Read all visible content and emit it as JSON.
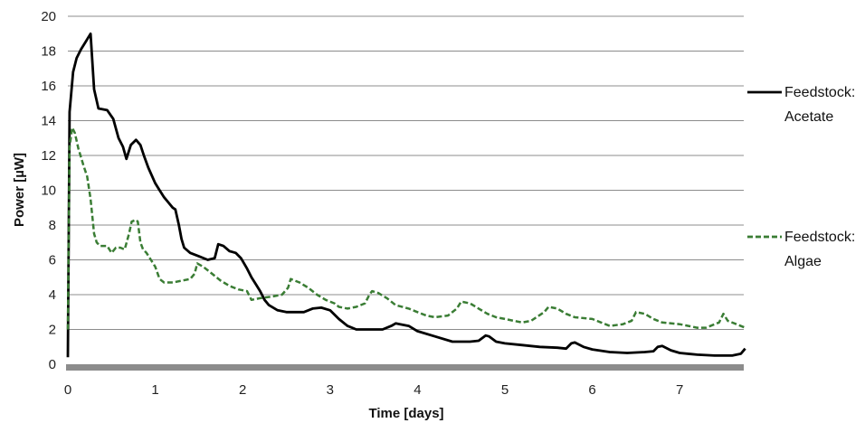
{
  "chart_data": {
    "type": "line",
    "xlabel": "Time [days]",
    "ylabel": "Power [µW]",
    "xlim": [
      0,
      7.8
    ],
    "ylim": [
      0,
      20
    ],
    "x_ticks": [
      "0",
      "1",
      "2",
      "3",
      "4",
      "5",
      "6",
      "7"
    ],
    "y_ticks": [
      "0",
      "2",
      "4",
      "6",
      "8",
      "10",
      "12",
      "14",
      "16",
      "18",
      "20"
    ],
    "grid": "horizontal",
    "legend_position": "right",
    "series": [
      {
        "legend_line1": "Feedstock:",
        "legend_line2": "Acetate",
        "color": "#000000",
        "style": "solid",
        "x": [
          0,
          0.02,
          0.06,
          0.1,
          0.15,
          0.2,
          0.26,
          0.3,
          0.35,
          0.45,
          0.52,
          0.58,
          0.63,
          0.67,
          0.72,
          0.78,
          0.83,
          0.87,
          0.92,
          1.0,
          1.05,
          1.1,
          1.15,
          1.2,
          1.23,
          1.27,
          1.3,
          1.33,
          1.4,
          1.5,
          1.6,
          1.68,
          1.72,
          1.78,
          1.85,
          1.92,
          1.98,
          2.05,
          2.1,
          2.15,
          2.2,
          2.25,
          2.3,
          2.4,
          2.5,
          2.6,
          2.7,
          2.8,
          2.9,
          3.0,
          3.1,
          3.2,
          3.3,
          3.4,
          3.5,
          3.6,
          3.7,
          3.75,
          3.8,
          3.9,
          4.0,
          4.2,
          4.4,
          4.6,
          4.7,
          4.78,
          4.82,
          4.9,
          5.0,
          5.2,
          5.4,
          5.6,
          5.7,
          5.76,
          5.8,
          5.9,
          6.0,
          6.2,
          6.4,
          6.6,
          6.7,
          6.75,
          6.8,
          6.9,
          7.0,
          7.2,
          7.4,
          7.6,
          7.7,
          7.75
        ],
        "y": [
          0.4,
          14.5,
          16.8,
          17.6,
          18.1,
          18.5,
          19.0,
          15.8,
          14.7,
          14.6,
          14.1,
          13.0,
          12.5,
          11.8,
          12.6,
          12.9,
          12.6,
          12.0,
          11.3,
          10.4,
          10.0,
          9.6,
          9.3,
          9.0,
          8.9,
          8.0,
          7.2,
          6.7,
          6.4,
          6.2,
          6.0,
          6.1,
          6.9,
          6.8,
          6.5,
          6.4,
          6.1,
          5.5,
          5.0,
          4.6,
          4.2,
          3.7,
          3.4,
          3.1,
          3.0,
          3.0,
          3.0,
          3.2,
          3.25,
          3.1,
          2.6,
          2.2,
          2.0,
          2.0,
          2.0,
          2.0,
          2.2,
          2.35,
          2.3,
          2.2,
          1.9,
          1.6,
          1.3,
          1.3,
          1.35,
          1.65,
          1.6,
          1.3,
          1.2,
          1.1,
          1.0,
          0.95,
          0.9,
          1.2,
          1.25,
          1.0,
          0.85,
          0.7,
          0.65,
          0.7,
          0.75,
          1.0,
          1.05,
          0.8,
          0.65,
          0.55,
          0.5,
          0.5,
          0.6,
          0.9
        ]
      },
      {
        "legend_line1": "Feedstock:",
        "legend_line2": "Algae",
        "color": "#3a7d34",
        "style": "dashed",
        "x": [
          0,
          0.02,
          0.05,
          0.08,
          0.12,
          0.18,
          0.22,
          0.26,
          0.3,
          0.33,
          0.37,
          0.45,
          0.5,
          0.55,
          0.6,
          0.65,
          0.7,
          0.73,
          0.78,
          0.8,
          0.83,
          0.86,
          0.9,
          0.95,
          1.0,
          1.05,
          1.1,
          1.2,
          1.3,
          1.4,
          1.45,
          1.48,
          1.55,
          1.65,
          1.75,
          1.85,
          1.95,
          2.05,
          2.1,
          2.2,
          2.35,
          2.45,
          2.52,
          2.55,
          2.65,
          2.75,
          2.85,
          2.95,
          3.05,
          3.1,
          3.2,
          3.3,
          3.4,
          3.45,
          3.48,
          3.55,
          3.65,
          3.75,
          3.9,
          4.0,
          4.1,
          4.2,
          4.35,
          4.45,
          4.5,
          4.6,
          4.7,
          4.8,
          4.9,
          5.0,
          5.1,
          5.2,
          5.3,
          5.45,
          5.5,
          5.6,
          5.7,
          5.8,
          6.0,
          6.1,
          6.2,
          6.35,
          6.45,
          6.5,
          6.6,
          6.7,
          6.8,
          7.0,
          7.1,
          7.2,
          7.3,
          7.4,
          7.45,
          7.5,
          7.55,
          7.65,
          7.75
        ],
        "y": [
          2.0,
          12.5,
          13.6,
          13.3,
          12.4,
          11.4,
          10.8,
          9.5,
          7.5,
          7.0,
          6.8,
          6.8,
          6.4,
          6.7,
          6.7,
          6.6,
          7.5,
          8.2,
          8.3,
          8.2,
          7.0,
          6.6,
          6.4,
          6.0,
          5.6,
          4.9,
          4.7,
          4.7,
          4.8,
          4.9,
          5.2,
          5.8,
          5.6,
          5.2,
          4.8,
          4.5,
          4.3,
          4.2,
          3.7,
          3.8,
          3.9,
          4.0,
          4.4,
          4.9,
          4.7,
          4.4,
          4.0,
          3.7,
          3.5,
          3.3,
          3.2,
          3.3,
          3.5,
          4.0,
          4.2,
          4.1,
          3.8,
          3.4,
          3.2,
          3.0,
          2.8,
          2.7,
          2.8,
          3.2,
          3.6,
          3.5,
          3.2,
          2.9,
          2.7,
          2.6,
          2.5,
          2.4,
          2.5,
          3.0,
          3.3,
          3.2,
          2.9,
          2.7,
          2.6,
          2.4,
          2.2,
          2.3,
          2.5,
          3.0,
          2.9,
          2.6,
          2.4,
          2.3,
          2.2,
          2.1,
          2.1,
          2.3,
          2.4,
          2.9,
          2.5,
          2.3,
          2.1
        ]
      }
    ]
  }
}
